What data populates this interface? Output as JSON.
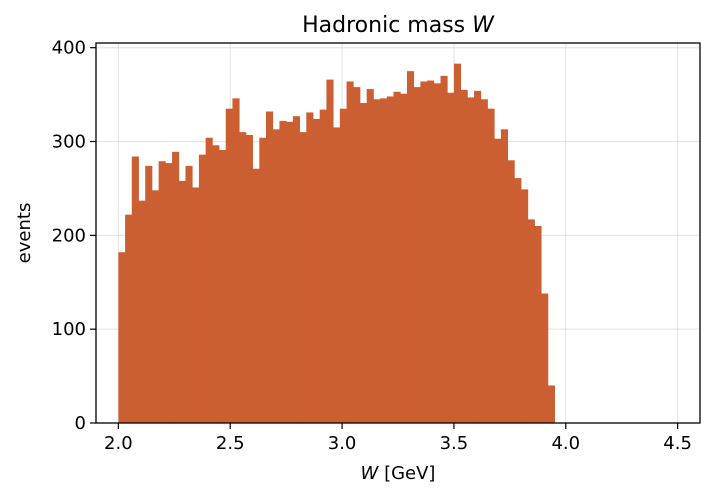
{
  "chart_data": {
    "type": "bar",
    "title": {
      "text": "Hadronic mass ",
      "var": "W"
    },
    "xlabel": {
      "var": "W",
      "text": " [GeV]"
    },
    "ylabel": "events",
    "xlim": [
      1.9,
      4.6
    ],
    "ylim": [
      0,
      405
    ],
    "xticks": [
      2.0,
      2.5,
      3.0,
      3.5,
      4.0,
      4.5
    ],
    "xtick_labels": [
      "2.0",
      "2.5",
      "3.0",
      "3.5",
      "4.0",
      "4.5"
    ],
    "yticks": [
      0,
      100,
      200,
      300,
      400
    ],
    "ytick_labels": [
      "0",
      "100",
      "200",
      "300",
      "400"
    ],
    "grid": true,
    "bar_color": "#cc5f32",
    "bin_start": 2.0,
    "bin_width": 0.03,
    "values": [
      182,
      222,
      284,
      237,
      274,
      248,
      279,
      277,
      289,
      258,
      274,
      251,
      286,
      304,
      296,
      291,
      335,
      346,
      310,
      307,
      271,
      304,
      332,
      313,
      322,
      321,
      327,
      310,
      331,
      324,
      334,
      366,
      315,
      335,
      364,
      358,
      341,
      356,
      345,
      346,
      348,
      353,
      351,
      375,
      358,
      364,
      365,
      362,
      370,
      352,
      383,
      355,
      347,
      354,
      345,
      335,
      303,
      313,
      280,
      261,
      249,
      217,
      210,
      138,
      40
    ]
  }
}
